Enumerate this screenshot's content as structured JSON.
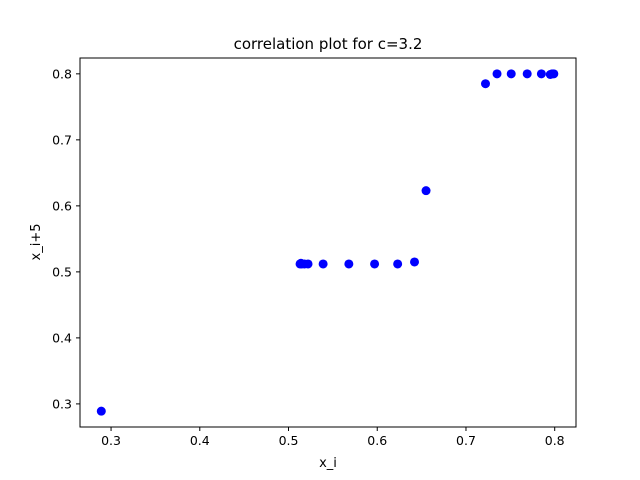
{
  "chart_data": {
    "type": "scatter",
    "title": "correlation plot for c=3.2",
    "xlabel": "x_i",
    "ylabel": "x_i+5",
    "xlim": [
      0.265,
      0.824
    ],
    "ylim": [
      0.265,
      0.824
    ],
    "xticks": [
      0.3,
      0.4,
      0.5,
      0.6,
      0.7,
      0.8
    ],
    "yticks": [
      0.3,
      0.4,
      0.5,
      0.6,
      0.7,
      0.8
    ],
    "grid": false,
    "marker_color": "#0000ff",
    "series": [
      {
        "points": [
          [
            0.289,
            0.289
          ],
          [
            0.513,
            0.512
          ],
          [
            0.514,
            0.513
          ],
          [
            0.515,
            0.512
          ],
          [
            0.518,
            0.512
          ],
          [
            0.522,
            0.512
          ],
          [
            0.539,
            0.512
          ],
          [
            0.568,
            0.512
          ],
          [
            0.597,
            0.512
          ],
          [
            0.623,
            0.512
          ],
          [
            0.642,
            0.515
          ],
          [
            0.655,
            0.623
          ],
          [
            0.722,
            0.785
          ],
          [
            0.735,
            0.8
          ],
          [
            0.751,
            0.8
          ],
          [
            0.769,
            0.8
          ],
          [
            0.785,
            0.8
          ],
          [
            0.795,
            0.799
          ],
          [
            0.797,
            0.8
          ],
          [
            0.799,
            0.8
          ]
        ]
      }
    ]
  }
}
